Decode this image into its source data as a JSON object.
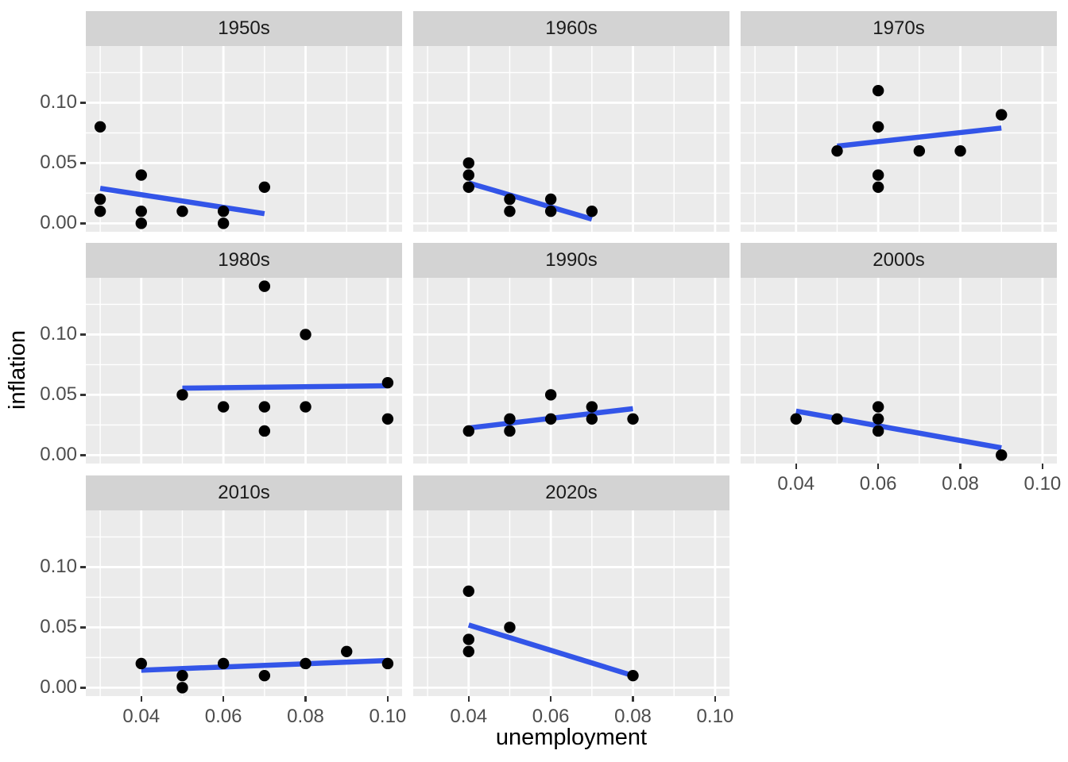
{
  "chart_data": {
    "type": "scatter",
    "title": "",
    "xlabel": "unemployment",
    "ylabel": "inflation",
    "facet_by": "decade",
    "legend": "none",
    "grid": "white major/minor gridlines on grey panels",
    "smooth_method": "lm",
    "x_tick_labels": [
      "0.04",
      "0.06",
      "0.08",
      "0.10"
    ],
    "x_tick_values": [
      0.04,
      0.06,
      0.08,
      0.1
    ],
    "y_tick_labels": [
      "0.10",
      "0.05",
      "0.00"
    ],
    "y_tick_values": [
      0.1,
      0.05,
      0.0
    ],
    "x_minor_gridlines": [
      0.03,
      0.05,
      0.07,
      0.09
    ],
    "y_minor_gridlines": [
      0.025,
      0.075,
      0.125
    ],
    "x_domain": [
      0.0265,
      0.1035
    ],
    "y_domain": [
      -0.007,
      0.147
    ],
    "colors": {
      "point": "#000000",
      "smooth_line": "#3355E8",
      "panel_bg": "#EBEBEB",
      "strip_bg": "#D3D3D3",
      "gridline": "#FFFFFF",
      "tick_text": "#4D4D4D",
      "strip_text": "#1A1A1A",
      "axis_title": "#000000",
      "tick_mark": "#333333"
    },
    "facets": [
      {
        "label": "1950s",
        "points": [
          [
            0.03,
            0.08
          ],
          [
            0.03,
            0.02
          ],
          [
            0.03,
            0.01
          ],
          [
            0.04,
            0.04
          ],
          [
            0.04,
            0.01
          ],
          [
            0.04,
            0.0
          ],
          [
            0.05,
            0.01
          ],
          [
            0.06,
            0.01
          ],
          [
            0.06,
            0.0
          ],
          [
            0.07,
            0.03
          ]
        ],
        "smooth": [
          [
            0.03,
            0.029
          ],
          [
            0.07,
            0.008
          ]
        ]
      },
      {
        "label": "1960s",
        "points": [
          [
            0.04,
            0.05
          ],
          [
            0.04,
            0.04
          ],
          [
            0.04,
            0.03
          ],
          [
            0.05,
            0.02
          ],
          [
            0.05,
            0.01
          ],
          [
            0.06,
            0.02
          ],
          [
            0.06,
            0.01
          ],
          [
            0.07,
            0.01
          ]
        ],
        "smooth": [
          [
            0.04,
            0.0335
          ],
          [
            0.07,
            0.0035
          ]
        ]
      },
      {
        "label": "1970s",
        "points": [
          [
            0.05,
            0.06
          ],
          [
            0.06,
            0.11
          ],
          [
            0.06,
            0.08
          ],
          [
            0.06,
            0.04
          ],
          [
            0.06,
            0.03
          ],
          [
            0.07,
            0.06
          ],
          [
            0.08,
            0.06
          ],
          [
            0.09,
            0.09
          ]
        ],
        "smooth": [
          [
            0.05,
            0.064
          ],
          [
            0.09,
            0.079
          ]
        ]
      },
      {
        "label": "1980s",
        "points": [
          [
            0.05,
            0.05
          ],
          [
            0.06,
            0.04
          ],
          [
            0.07,
            0.14
          ],
          [
            0.07,
            0.04
          ],
          [
            0.07,
            0.02
          ],
          [
            0.08,
            0.1
          ],
          [
            0.08,
            0.04
          ],
          [
            0.1,
            0.06
          ],
          [
            0.1,
            0.03
          ]
        ],
        "smooth": [
          [
            0.05,
            0.0555
          ],
          [
            0.1,
            0.0575
          ]
        ]
      },
      {
        "label": "1990s",
        "points": [
          [
            0.04,
            0.02
          ],
          [
            0.05,
            0.03
          ],
          [
            0.05,
            0.02
          ],
          [
            0.06,
            0.05
          ],
          [
            0.06,
            0.03
          ],
          [
            0.07,
            0.04
          ],
          [
            0.07,
            0.03
          ],
          [
            0.08,
            0.03
          ]
        ],
        "smooth": [
          [
            0.04,
            0.0225
          ],
          [
            0.08,
            0.0385
          ]
        ]
      },
      {
        "label": "2000s",
        "points": [
          [
            0.04,
            0.03
          ],
          [
            0.05,
            0.03
          ],
          [
            0.06,
            0.04
          ],
          [
            0.06,
            0.03
          ],
          [
            0.06,
            0.02
          ],
          [
            0.09,
            0.0
          ]
        ],
        "smooth": [
          [
            0.04,
            0.0365
          ],
          [
            0.09,
            0.006
          ]
        ]
      },
      {
        "label": "2010s",
        "points": [
          [
            0.04,
            0.02
          ],
          [
            0.05,
            0.01
          ],
          [
            0.05,
            0.0
          ],
          [
            0.06,
            0.02
          ],
          [
            0.07,
            0.01
          ],
          [
            0.08,
            0.02
          ],
          [
            0.09,
            0.03
          ],
          [
            0.1,
            0.02
          ]
        ],
        "smooth": [
          [
            0.04,
            0.0145
          ],
          [
            0.1,
            0.0225
          ]
        ]
      },
      {
        "label": "2020s",
        "points": [
          [
            0.04,
            0.08
          ],
          [
            0.04,
            0.04
          ],
          [
            0.04,
            0.03
          ],
          [
            0.05,
            0.05
          ],
          [
            0.08,
            0.01
          ]
        ],
        "smooth": [
          [
            0.04,
            0.052
          ],
          [
            0.08,
            0.01
          ]
        ]
      }
    ]
  }
}
